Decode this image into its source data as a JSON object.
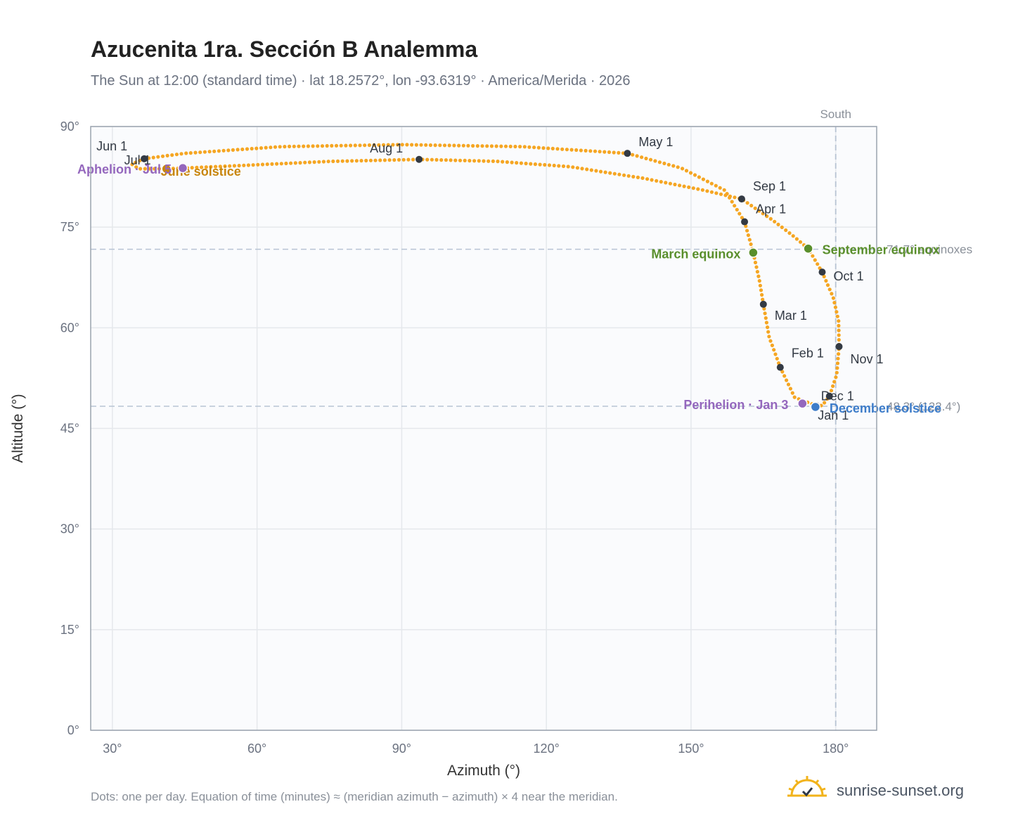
{
  "header": {
    "title": "Azucenita 1ra. Sección B Analemma",
    "subtitle": "The Sun at 12:00 (standard time) · lat 18.2572°, lon -93.6319° · America/Merida · 2026"
  },
  "footer": {
    "note": "Dots: one per day. Equation of time (minutes) ≈ (meridian azimuth − azimuth) × 4 near the meridian.",
    "brand": "sunrise-sunset.org"
  },
  "colors": {
    "path": "#f5a623",
    "month_marker": "#333a44",
    "equinox": "#5a8f2c",
    "solstice_june": "#c8860e",
    "solstice_december": "#3d7cc9",
    "apsis": "#9467bd",
    "grid": "#e5e8ec",
    "plot_bg": "#fafbfd"
  },
  "chart_data": {
    "type": "scatter",
    "xlabel": "Azimuth (°)",
    "ylabel": "Altitude (°)",
    "xlim": [
      25.5,
      188.5
    ],
    "ylim": [
      0,
      90
    ],
    "xticks": [
      30,
      60,
      90,
      120,
      150,
      180
    ],
    "yticks": [
      0,
      15,
      30,
      45,
      60,
      75,
      90
    ],
    "xtick_labels": [
      "30°",
      "60°",
      "90°",
      "120°",
      "150°",
      "180°"
    ],
    "ytick_labels": [
      "0°",
      "15°",
      "30°",
      "45°",
      "60°",
      "75°",
      "90°"
    ],
    "grid": true,
    "meridian": {
      "azimuth": 180,
      "label": "South"
    },
    "reference_lines": [
      {
        "altitude": 71.7,
        "label": "71.7° equinoxes"
      },
      {
        "altitude": 48.3,
        "label": "48.3° (122.4°)"
      }
    ],
    "monthly_markers": [
      {
        "label": "Jan 1",
        "azimuth": 176.0,
        "altitude": 48.4
      },
      {
        "label": "Feb 1",
        "azimuth": 168.5,
        "altitude": 54.1
      },
      {
        "label": "Mar 1",
        "azimuth": 165.0,
        "altitude": 63.5
      },
      {
        "label": "Apr 1",
        "azimuth": 161.1,
        "altitude": 75.8
      },
      {
        "label": "May 1",
        "azimuth": 136.8,
        "altitude": 86.0
      },
      {
        "label": "Jun 1",
        "azimuth": 36.6,
        "altitude": 85.2
      },
      {
        "label": "Jul 1",
        "azimuth": 41.2,
        "altitude": 83.7
      },
      {
        "label": "Aug 1",
        "azimuth": 93.6,
        "altitude": 85.1
      },
      {
        "label": "Sep 1",
        "azimuth": 160.5,
        "altitude": 79.2
      },
      {
        "label": "Oct 1",
        "azimuth": 177.2,
        "altitude": 68.3
      },
      {
        "label": "Nov 1",
        "azimuth": 180.7,
        "altitude": 57.2
      },
      {
        "label": "Dec 1",
        "azimuth": 178.7,
        "altitude": 49.8
      }
    ],
    "events": [
      {
        "label": "March equinox",
        "azimuth": 162.9,
        "altitude": 71.2,
        "kind": "equinox"
      },
      {
        "label": "September equinox",
        "azimuth": 174.3,
        "altitude": 71.8,
        "kind": "equinox"
      },
      {
        "label": "June solstice",
        "azimuth": 41.2,
        "altitude": 83.7,
        "kind": "solstice_june"
      },
      {
        "label": "December solstice",
        "azimuth": 175.8,
        "altitude": 48.2,
        "kind": "solstice_december"
      },
      {
        "label": "Aphelion · Jul 5",
        "azimuth": 44.6,
        "altitude": 83.8,
        "kind": "apsis"
      },
      {
        "label": "Perihelion · Jan 3",
        "azimuth": 173.1,
        "altitude": 48.7,
        "kind": "apsis"
      }
    ],
    "series": [
      {
        "points": [
          [
            176.0,
            48.4
          ],
          [
            171.5,
            49.6
          ],
          [
            168.5,
            54.1
          ],
          [
            166.2,
            58.6
          ],
          [
            165.0,
            63.5
          ],
          [
            164.2,
            67.0
          ],
          [
            162.9,
            71.2
          ],
          [
            161.1,
            75.8
          ],
          [
            157.0,
            80.5
          ],
          [
            148.0,
            83.8
          ],
          [
            136.8,
            86.0
          ],
          [
            115.0,
            87.0
          ],
          [
            90.0,
            87.3
          ],
          [
            65.0,
            87.0
          ],
          [
            45.0,
            86.0
          ],
          [
            36.6,
            85.2
          ],
          [
            34.0,
            84.4
          ],
          [
            35.5,
            83.7
          ],
          [
            41.2,
            83.7
          ],
          [
            44.6,
            83.8
          ],
          [
            60.0,
            84.3
          ],
          [
            75.0,
            84.8
          ],
          [
            93.6,
            85.1
          ],
          [
            110.0,
            84.8
          ],
          [
            125.0,
            84.0
          ],
          [
            140.0,
            82.3
          ],
          [
            152.0,
            80.6
          ],
          [
            160.5,
            79.2
          ],
          [
            167.0,
            76.0
          ],
          [
            171.0,
            73.8
          ],
          [
            174.3,
            71.8
          ],
          [
            177.2,
            68.3
          ],
          [
            179.5,
            64.5
          ],
          [
            180.6,
            61.0
          ],
          [
            180.7,
            57.2
          ],
          [
            180.2,
            53.0
          ],
          [
            178.7,
            49.8
          ],
          [
            177.2,
            48.4
          ],
          [
            176.0,
            48.4
          ]
        ]
      }
    ]
  }
}
